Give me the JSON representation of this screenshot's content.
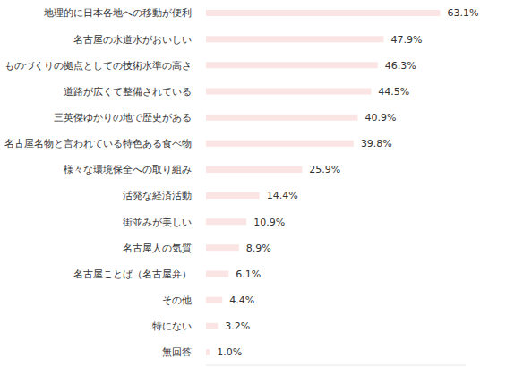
{
  "chart_data": {
    "type": "bar",
    "orientation": "horizontal",
    "categories": [
      "地理的に日本各地への移動が便利",
      "名古屋の水道水がおいしい",
      "ものづくりの拠点としての技術水準の高さ",
      "道路が広くて整備されている",
      "三英傑ゆかりの地で歴史がある",
      "名古屋名物と言われている特色ある食べ物",
      "様々な環境保全への取り組み",
      "活発な経済活動",
      "街並みが美しい",
      "名古屋人の気質",
      "名古屋ことば（名古屋弁）",
      "その他",
      "特にない",
      "無回答"
    ],
    "values": [
      63.1,
      47.9,
      46.3,
      44.5,
      40.9,
      39.8,
      25.9,
      14.4,
      10.9,
      8.9,
      6.1,
      4.4,
      3.2,
      1.0
    ],
    "value_labels": [
      "63.1%",
      "47.9%",
      "46.3%",
      "44.5%",
      "40.9%",
      "39.8%",
      "25.9%",
      "14.4%",
      "10.9%",
      "8.9%",
      "6.1%",
      "4.4%",
      "3.2%",
      "1.0%"
    ],
    "color": "#fbe5e4",
    "xlim": [
      0,
      70
    ],
    "data_labels": true,
    "tick_labels": "y"
  }
}
